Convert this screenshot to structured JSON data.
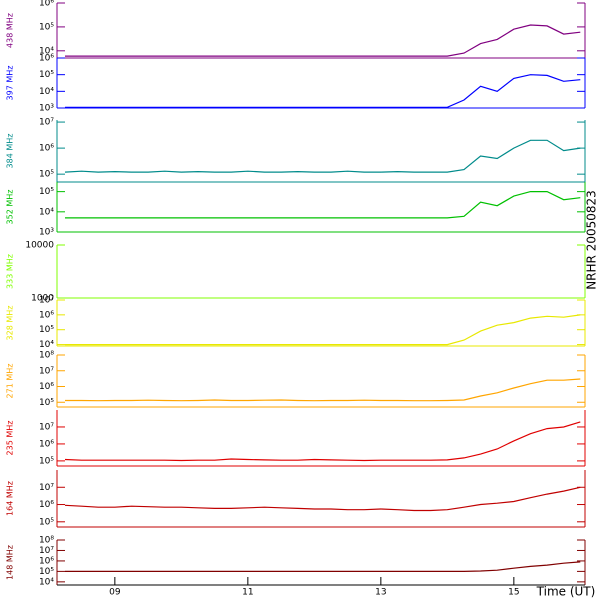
{
  "side_label": "NRHR 20050823",
  "x_axis": {
    "label": "Time (UT)",
    "xlim": [
      8.13,
      16.07
    ],
    "xticks": [
      {
        "value": 9,
        "label": "09"
      },
      {
        "value": 11,
        "label": "11"
      },
      {
        "value": 13,
        "label": "13"
      },
      {
        "value": 15,
        "label": "15"
      }
    ],
    "x": [
      8.25,
      8.5,
      8.75,
      9,
      9.25,
      9.5,
      9.75,
      10,
      10.25,
      10.5,
      10.75,
      11,
      11.25,
      11.5,
      11.75,
      12,
      12.25,
      12.5,
      12.75,
      13,
      13.25,
      13.5,
      13.75,
      14,
      14.25,
      14.5,
      14.75,
      15,
      15.25,
      15.5,
      15.75,
      16
    ]
  },
  "chart_data": [
    {
      "type": "line",
      "ylabel": "438 MHz",
      "color": "#800080",
      "log_scale": true,
      "ylim": [
        5000,
        1000000
      ],
      "yticks": [
        {
          "value": 10000,
          "label": "10⁴"
        },
        {
          "value": 100000,
          "label": "10⁵"
        },
        {
          "value": 1000000,
          "label": "10⁶"
        }
      ],
      "values": [
        6000,
        6000,
        6000,
        6000,
        6000,
        6000,
        6000,
        6000,
        6000,
        6000,
        6000,
        6000,
        6000,
        6000,
        6000,
        6000,
        6000,
        6000,
        6000,
        6000,
        6000,
        6000,
        6000,
        6000,
        8000,
        20000,
        30000,
        80000,
        120000,
        110000,
        50000,
        60000
      ]
    },
    {
      "type": "line",
      "ylabel": "397 MHz",
      "color": "#0000ff",
      "log_scale": true,
      "ylim": [
        1000,
        1000000
      ],
      "yticks": [
        {
          "value": 1000,
          "label": "10³"
        },
        {
          "value": 10000,
          "label": "10⁴"
        },
        {
          "value": 100000,
          "label": "10⁵"
        },
        {
          "value": 1000000,
          "label": "10⁶"
        }
      ],
      "values": [
        1100,
        1100,
        1100,
        1100,
        1100,
        1100,
        1100,
        1100,
        1100,
        1100,
        1100,
        1100,
        1100,
        1100,
        1100,
        1100,
        1100,
        1100,
        1100,
        1100,
        1100,
        1100,
        1100,
        1100,
        3000,
        20000,
        10000,
        60000,
        100000,
        90000,
        40000,
        50000
      ]
    },
    {
      "type": "line",
      "ylabel": "384 MHz",
      "color": "#008b8b",
      "log_scale": true,
      "ylim": [
        50000,
        12000000
      ],
      "yticks": [
        {
          "value": 100000,
          "label": "10⁵"
        },
        {
          "value": 1000000,
          "label": "10⁶"
        },
        {
          "value": 10000000,
          "label": "10⁷"
        }
      ],
      "values": [
        120000,
        130000,
        120000,
        125000,
        120000,
        120000,
        130000,
        120000,
        125000,
        120000,
        120000,
        130000,
        120000,
        120000,
        125000,
        120000,
        120000,
        130000,
        120000,
        120000,
        125000,
        120000,
        120000,
        120000,
        150000,
        500000,
        400000,
        1000000,
        2000000,
        2000000,
        800000,
        1000000
      ]
    },
    {
      "type": "line",
      "ylabel": "352 MHz",
      "color": "#00c000",
      "log_scale": true,
      "ylim": [
        1000,
        300000
      ],
      "yticks": [
        {
          "value": 1000,
          "label": "10³"
        },
        {
          "value": 10000,
          "label": "10⁴"
        },
        {
          "value": 100000,
          "label": "10⁵"
        }
      ],
      "values": [
        5000,
        5000,
        5000,
        5000,
        5000,
        5000,
        5000,
        5000,
        5000,
        5000,
        5000,
        5000,
        5000,
        5000,
        5000,
        5000,
        5000,
        5000,
        5000,
        5000,
        5000,
        5000,
        5000,
        5000,
        6000,
        30000,
        20000,
        60000,
        100000,
        100000,
        40000,
        50000
      ]
    },
    {
      "type": "line",
      "ylabel": "333 MHz",
      "color": "#80ff00",
      "log_scale": true,
      "ylim": [
        1000,
        10000
      ],
      "yticks": [
        1000,
        10000
      ]
    },
    {
      "type": "line",
      "ylabel": "328 MHz",
      "color": "#e8e800",
      "log_scale": true,
      "ylim": [
        8000,
        10000000
      ],
      "yticks": [
        {
          "value": 10000,
          "label": "10⁴"
        },
        {
          "value": 100000,
          "label": "10⁵"
        },
        {
          "value": 1000000,
          "label": "10⁶"
        },
        {
          "value": 10000000,
          "label": "10⁷"
        }
      ],
      "values": [
        10000,
        10000,
        10000,
        10000,
        10000,
        10000,
        10000,
        10000,
        10000,
        10000,
        10000,
        10000,
        10000,
        10000,
        10000,
        10000,
        10000,
        10000,
        10000,
        10000,
        10000,
        10000,
        10000,
        10000,
        20000,
        80000,
        200000,
        300000,
        600000,
        800000,
        700000,
        1000000
      ]
    },
    {
      "type": "line",
      "ylabel": "271 MHz",
      "color": "#ffa500",
      "log_scale": true,
      "ylim": [
        50000,
        100000000
      ],
      "yticks": [
        {
          "value": 100000,
          "label": "10⁵"
        },
        {
          "value": 1000000,
          "label": "10⁶"
        },
        {
          "value": 10000000,
          "label": "10⁷"
        },
        {
          "value": 100000000,
          "label": "10⁸"
        }
      ],
      "values": [
        130000,
        130000,
        125000,
        130000,
        130000,
        135000,
        130000,
        125000,
        130000,
        140000,
        130000,
        130000,
        135000,
        140000,
        130000,
        125000,
        130000,
        130000,
        135000,
        130000,
        130000,
        125000,
        125000,
        130000,
        140000,
        250000,
        400000,
        800000,
        1500000,
        2500000,
        2500000,
        3000000
      ]
    },
    {
      "type": "line",
      "ylabel": "235 MHz",
      "color": "#e00000",
      "log_scale": true,
      "ylim": [
        50000,
        100000000
      ],
      "yticks": [
        {
          "value": 100000,
          "label": "10⁵"
        },
        {
          "value": 1000000,
          "label": "10⁶"
        },
        {
          "value": 10000000,
          "label": "10⁷"
        }
      ],
      "values": [
        120000,
        110000,
        110000,
        110000,
        110000,
        110000,
        110000,
        105000,
        110000,
        110000,
        130000,
        120000,
        115000,
        110000,
        110000,
        120000,
        115000,
        110000,
        105000,
        110000,
        110000,
        110000,
        110000,
        115000,
        150000,
        250000,
        500000,
        1500000,
        4000000,
        8000000,
        10000000,
        20000000
      ]
    },
    {
      "type": "line",
      "ylabel": "164 MHz",
      "color": "#c00000",
      "log_scale": true,
      "ylim": [
        50000,
        100000000
      ],
      "yticks": [
        {
          "value": 100000,
          "label": "10⁵"
        },
        {
          "value": 1000000,
          "label": "10⁶"
        },
        {
          "value": 10000000,
          "label": "10⁷"
        }
      ],
      "values": [
        900000,
        800000,
        700000,
        700000,
        800000,
        750000,
        700000,
        700000,
        650000,
        600000,
        600000,
        650000,
        700000,
        650000,
        600000,
        550000,
        550000,
        500000,
        500000,
        550000,
        500000,
        450000,
        450000,
        500000,
        700000,
        1000000,
        1200000,
        1500000,
        2500000,
        4000000,
        6000000,
        10000000
      ]
    },
    {
      "type": "line",
      "ylabel": "148 MHz",
      "color": "#800000",
      "log_scale": true,
      "ylim": [
        5000,
        100000000
      ],
      "yticks": [
        {
          "value": 10000,
          "label": "10⁴"
        },
        {
          "value": 100000,
          "label": "10⁵"
        },
        {
          "value": 1000000,
          "label": "10⁶"
        },
        {
          "value": 10000000,
          "label": "10⁷"
        },
        {
          "value": 100000000,
          "label": "10⁸"
        }
      ],
      "values": [
        100000,
        100000,
        100000,
        100000,
        100000,
        100000,
        100000,
        100000,
        100000,
        100000,
        100000,
        100000,
        100000,
        100000,
        100000,
        100000,
        100000,
        100000,
        100000,
        100000,
        100000,
        100000,
        100000,
        100000,
        100000,
        110000,
        130000,
        200000,
        300000,
        400000,
        600000,
        800000
      ]
    }
  ]
}
